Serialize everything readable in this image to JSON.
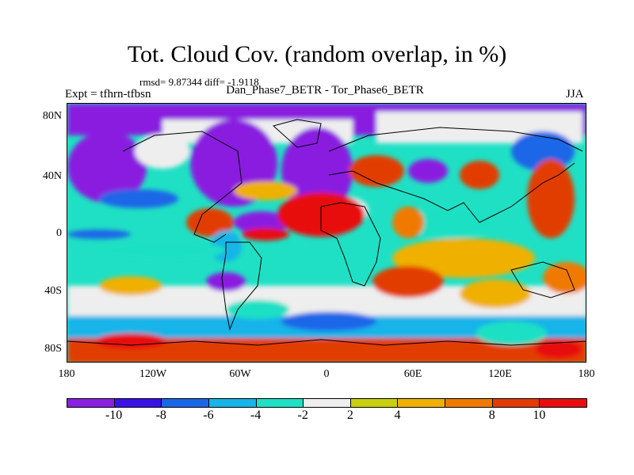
{
  "title": "Tot. Cloud Cov. (random overlap, in %)",
  "stats": "rmsd= 9.87344 diff= -1.9118",
  "expt": "Expt = tfhrn-tfbsn",
  "difference_label": "Dan_Phase7_BETR - Tor_Phase6_BETR",
  "season": "JJA",
  "lat_ticks": [
    "80N",
    "40N",
    "0",
    "40S",
    "80S"
  ],
  "lon_ticks": [
    "180",
    "120W",
    "60W",
    "0",
    "60E",
    "120E",
    "180"
  ],
  "colorbar": {
    "colors": [
      "#8a1fe0",
      "#3a12e6",
      "#1a66e8",
      "#16b4e8",
      "#1fe0c4",
      "#eeeeee",
      "#c8d010",
      "#f0b000",
      "#f07a00",
      "#e23c00",
      "#e80e0e"
    ],
    "labels": [
      "-10",
      "-8",
      "-6",
      "-4",
      "-2",
      "2",
      "4",
      "8",
      "10"
    ]
  }
}
